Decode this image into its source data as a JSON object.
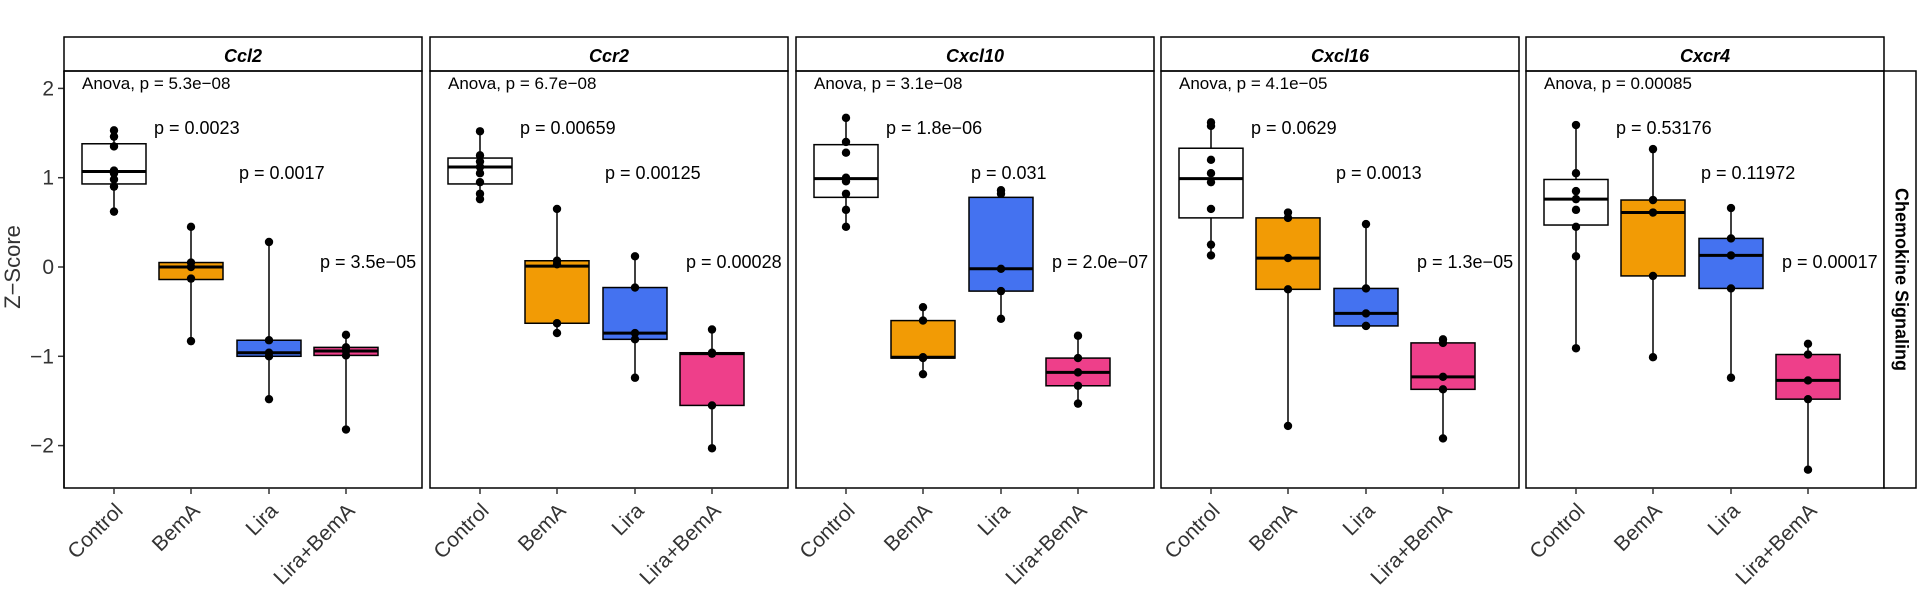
{
  "chart_data": {
    "type": "box",
    "ylabel": "Z−Score",
    "facet_label": "Chemokine Signaling",
    "ylim": [
      -2.5,
      2.2
    ],
    "y_ticks": [
      {
        "value": 2,
        "label": "2"
      },
      {
        "value": 1,
        "label": "1"
      },
      {
        "value": 0,
        "label": "0"
      },
      {
        "value": -1,
        "label": "−1"
      },
      {
        "value": -2,
        "label": "−2"
      }
    ],
    "groups": [
      "Control",
      "BemA",
      "Lira",
      "Lira+BemA"
    ],
    "group_colors": {
      "Control": "#ffffff",
      "BemA": "#f29b05",
      "Lira": "#4472f0",
      "Lira+BemA": "#ee3f8a"
    },
    "panels": [
      {
        "gene": "Ccl2",
        "anova": "Anova, p = 5.3e−08",
        "pvalues": [
          "p = 0.0023",
          "p = 0.0017",
          "p = 3.5e−05"
        ],
        "boxes": [
          {
            "group": "Control",
            "min": 0.62,
            "q1": 0.93,
            "median": 1.07,
            "q3": 1.38,
            "max": 1.53,
            "points": [
              1.53,
              1.46,
              1.35,
              1.08,
              1.05,
              0.98,
              0.9,
              0.62
            ]
          },
          {
            "group": "BemA",
            "min": -0.83,
            "q1": -0.14,
            "median": 0.0,
            "q3": 0.05,
            "max": 0.45,
            "points": [
              0.45,
              0.05,
              0.0,
              -0.13,
              -0.83
            ]
          },
          {
            "group": "Lira",
            "min": -1.48,
            "q1": -1.0,
            "median": -0.96,
            "q3": -0.82,
            "max": 0.28,
            "points": [
              0.28,
              -0.82,
              -0.96,
              -1.0,
              -1.48
            ]
          },
          {
            "group": "Lira+BemA",
            "min": -1.82,
            "q1": -0.99,
            "median": -0.94,
            "q3": -0.9,
            "max": -0.76,
            "points": [
              -0.76,
              -0.9,
              -0.94,
              -0.99,
              -1.82
            ]
          }
        ]
      },
      {
        "gene": "Ccr2",
        "anova": "Anova, p = 6.7e−08",
        "pvalues": [
          "p = 0.00659",
          "p = 0.00125",
          "p = 0.00028"
        ],
        "boxes": [
          {
            "group": "Control",
            "min": 0.75,
            "q1": 0.93,
            "median": 1.12,
            "q3": 1.22,
            "max": 1.52,
            "points": [
              1.52,
              1.25,
              1.18,
              1.12,
              1.05,
              0.95,
              0.82,
              0.76
            ]
          },
          {
            "group": "BemA",
            "min": -0.74,
            "q1": -0.63,
            "median": 0.01,
            "q3": 0.07,
            "max": 0.65,
            "points": [
              0.65,
              0.07,
              0.03,
              -0.63,
              -0.74
            ]
          },
          {
            "group": "Lira",
            "min": -1.24,
            "q1": -0.81,
            "median": -0.74,
            "q3": -0.23,
            "max": 0.12,
            "points": [
              0.12,
              -0.23,
              -0.74,
              -0.81,
              -1.24
            ]
          },
          {
            "group": "Lira+BemA",
            "min": -2.03,
            "q1": -1.55,
            "median": -0.97,
            "q3": -0.96,
            "max": -0.7,
            "points": [
              -0.7,
              -0.96,
              -0.97,
              -1.55,
              -2.03
            ]
          }
        ]
      },
      {
        "gene": "Cxcl10",
        "anova": "Anova, p = 3.1e−08",
        "pvalues": [
          "p = 1.8e−06",
          "p = 0.031",
          "p = 2.0e−07"
        ],
        "boxes": [
          {
            "group": "Control",
            "min": 0.45,
            "q1": 0.78,
            "median": 0.99,
            "q3": 1.37,
            "max": 1.67,
            "points": [
              1.67,
              1.4,
              1.28,
              1.0,
              0.96,
              0.82,
              0.64,
              0.45
            ]
          },
          {
            "group": "BemA",
            "min": -1.2,
            "q1": -1.02,
            "median": -1.01,
            "q3": -0.6,
            "max": -0.45,
            "points": [
              -0.45,
              -0.6,
              -1.01,
              -1.02,
              -1.2
            ]
          },
          {
            "group": "Lira",
            "min": -0.58,
            "q1": -0.27,
            "median": -0.02,
            "q3": 0.78,
            "max": 0.86,
            "points": [
              0.86,
              0.82,
              -0.02,
              -0.27,
              -0.58
            ]
          },
          {
            "group": "Lira+BemA",
            "min": -1.53,
            "q1": -1.33,
            "median": -1.18,
            "q3": -1.02,
            "max": -0.77,
            "points": [
              -0.77,
              -1.02,
              -1.18,
              -1.33,
              -1.53
            ]
          }
        ]
      },
      {
        "gene": "Cxcl16",
        "anova": "Anova, p = 4.1e−05",
        "pvalues": [
          "p = 0.0629",
          "p = 0.0013",
          "p = 1.3e−05"
        ],
        "boxes": [
          {
            "group": "Control",
            "min": 0.13,
            "q1": 0.55,
            "median": 0.99,
            "q3": 1.33,
            "max": 1.62,
            "points": [
              1.62,
              1.58,
              1.2,
              1.05,
              0.95,
              0.65,
              0.25,
              0.13
            ]
          },
          {
            "group": "BemA",
            "min": -1.78,
            "q1": -0.25,
            "median": 0.1,
            "q3": 0.55,
            "max": 0.61,
            "points": [
              0.61,
              0.55,
              0.1,
              -0.25,
              -1.78
            ]
          },
          {
            "group": "Lira",
            "min": -0.66,
            "q1": -0.66,
            "median": -0.52,
            "q3": -0.24,
            "max": 0.48,
            "points": [
              0.48,
              -0.24,
              -0.52,
              -0.66,
              -0.66
            ]
          },
          {
            "group": "Lira+BemA",
            "min": -1.92,
            "q1": -1.37,
            "median": -1.23,
            "q3": -0.85,
            "max": -0.81,
            "points": [
              -0.81,
              -0.85,
              -1.23,
              -1.37,
              -1.92
            ]
          }
        ]
      },
      {
        "gene": "Cxcr4",
        "anova": "Anova, p = 0.00085",
        "pvalues": [
          "p = 0.53176",
          "p = 0.11972",
          "p = 0.00017"
        ],
        "boxes": [
          {
            "group": "Control",
            "min": -0.91,
            "q1": 0.47,
            "median": 0.76,
            "q3": 0.98,
            "max": 1.59,
            "points": [
              1.59,
              1.05,
              0.85,
              0.76,
              0.64,
              0.45,
              0.12,
              -0.91
            ]
          },
          {
            "group": "BemA",
            "min": -1.01,
            "q1": -0.1,
            "median": 0.61,
            "q3": 0.75,
            "max": 1.32,
            "points": [
              1.32,
              0.75,
              0.61,
              -0.1,
              -1.01
            ]
          },
          {
            "group": "Lira",
            "min": -1.24,
            "q1": -0.24,
            "median": 0.13,
            "q3": 0.32,
            "max": 0.66,
            "points": [
              0.66,
              0.32,
              0.13,
              -0.24,
              -1.24
            ]
          },
          {
            "group": "Lira+BemA",
            "min": -2.27,
            "q1": -1.48,
            "median": -1.27,
            "q3": -0.98,
            "max": -0.86,
            "points": [
              -0.86,
              -0.98,
              -1.27,
              -1.48,
              -2.27
            ]
          }
        ]
      }
    ]
  }
}
